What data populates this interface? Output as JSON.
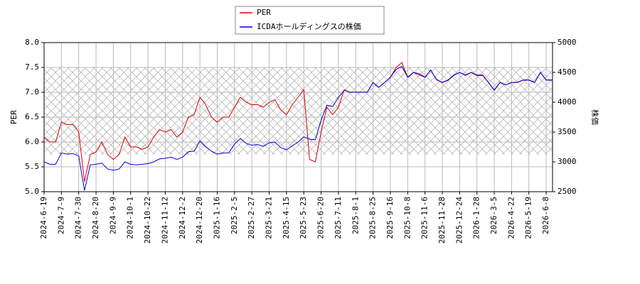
{
  "chart_data": {
    "type": "line",
    "x": [
      "2024-6-19",
      null,
      null,
      "2024-7-9",
      null,
      null,
      "2024-7-30",
      null,
      null,
      "2024-8-20",
      null,
      null,
      "2024-9-9",
      null,
      null,
      "2024-10-1",
      null,
      null,
      "2024-10-22",
      null,
      null,
      "2024-11-12",
      null,
      null,
      "2024-12-2",
      null,
      null,
      "2024-12-20",
      null,
      null,
      "2025-1-16",
      null,
      null,
      "2025-2-5",
      null,
      null,
      "2025-2-27",
      null,
      null,
      "2025-3-21",
      null,
      null,
      "2025-4-15",
      null,
      null,
      "2025-5-23",
      null,
      null,
      "2025-6-20",
      null,
      null,
      "2025-7-11",
      null,
      null,
      "2025-8-1",
      null,
      null,
      "2025-8-25",
      null,
      null,
      "2025-9-16",
      null,
      null,
      "2025-10-8",
      null,
      null,
      "2025-11-6",
      null,
      null,
      "2025-11-28",
      null,
      null,
      "2025-12-24",
      null,
      null,
      "2026-1-28",
      null,
      null,
      "2026-3-5",
      null,
      null,
      "2026-4-22",
      null,
      null,
      "2026-5-19",
      null,
      null,
      "2026-6-8",
      null
    ],
    "series": [
      {
        "name": "PER",
        "color": "#dd0000",
        "values": [
          6.1,
          6.0,
          6.0,
          6.4,
          6.35,
          6.35,
          6.2,
          5.2,
          5.75,
          5.8,
          6.0,
          5.75,
          5.65,
          5.75,
          6.1,
          5.9,
          5.9,
          5.85,
          5.9,
          6.1,
          6.25,
          6.2,
          6.25,
          6.1,
          6.2,
          6.5,
          6.55,
          6.9,
          6.75,
          6.5,
          6.4,
          6.5,
          6.5,
          6.7,
          6.9,
          6.8,
          6.75,
          6.75,
          6.7,
          6.8,
          6.85,
          6.65,
          6.55,
          6.75,
          6.9,
          7.05,
          5.65,
          5.6,
          6.2,
          6.7,
          6.55,
          6.7,
          7.05,
          7.0,
          7.0,
          7.0,
          7.0,
          7.2,
          7.1,
          7.2,
          7.3,
          7.5,
          7.6,
          7.3,
          7.4,
          7.35,
          7.3,
          7.45,
          7.25,
          7.2,
          7.25,
          7.35,
          7.4,
          7.35,
          7.4,
          7.35,
          7.35,
          7.2,
          7.05,
          7.2,
          7.15,
          7.2,
          7.2,
          7.25,
          7.25,
          7.2,
          7.4,
          7.25,
          7.25
        ]
      },
      {
        "name": "ICDAホールディングスの株価",
        "color": "#0000dd",
        "axis": "y2",
        "values": [
          3000,
          2960,
          2960,
          3150,
          3130,
          3140,
          3100,
          2520,
          2950,
          2960,
          2980,
          2880,
          2860,
          2880,
          3000,
          2960,
          2950,
          2960,
          2970,
          3000,
          3050,
          3060,
          3080,
          3040,
          3080,
          3170,
          3180,
          3350,
          3250,
          3180,
          3130,
          3150,
          3150,
          3300,
          3390,
          3310,
          3280,
          3290,
          3260,
          3320,
          3330,
          3240,
          3200,
          3270,
          3330,
          3420,
          3380,
          3370,
          3700,
          3950,
          3930,
          4080,
          4200,
          4170,
          4170,
          4170,
          4170,
          4330,
          4250,
          4330,
          4420,
          4550,
          4600,
          4420,
          4500,
          4480,
          4420,
          4540,
          4380,
          4330,
          4370,
          4450,
          4500,
          4450,
          4500,
          4450,
          4450,
          4330,
          4200,
          4330,
          4290,
          4330,
          4330,
          4370,
          4370,
          4330,
          4500,
          4370,
          4370
        ]
      }
    ],
    "ylabel": "PER",
    "y2label": "株価",
    "ylim": [
      5,
      8
    ],
    "yticks": [
      {
        "value": 5,
        "label": "5.0"
      },
      {
        "value": 5.5,
        "label": "5.5"
      },
      {
        "value": 6,
        "label": "6.0"
      },
      {
        "value": 6.5,
        "label": "6.5"
      },
      {
        "value": 7,
        "label": "7.0"
      },
      {
        "value": 7.5,
        "label": "7.5"
      },
      {
        "value": 8,
        "label": "8.0"
      }
    ],
    "y2lim": [
      2500,
      5000
    ],
    "y2ticks": [
      2500,
      3000,
      3500,
      4000,
      4500,
      5000
    ],
    "hatch_band": [
      5.75,
      7.5
    ],
    "grid": true,
    "legend": "top"
  }
}
